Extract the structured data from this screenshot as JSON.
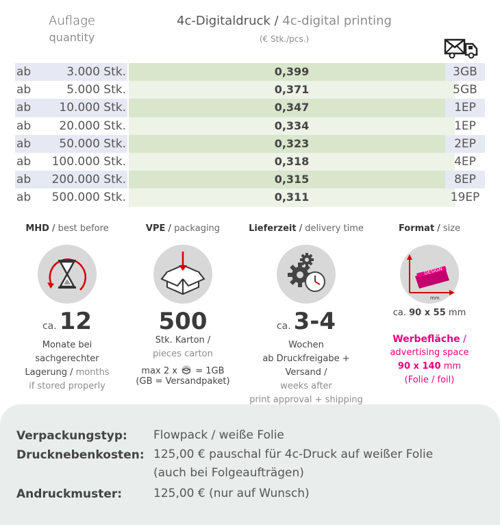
{
  "header": {
    "qty_de": "Auflage",
    "qty_en": "quantity",
    "title_de": "4c-Digitaldruck",
    "title_sep": " / ",
    "title_en": "4c-digital printing",
    "unit": "(€ Stk./pcs.)",
    "truck_icon": "truck-mail-icon"
  },
  "prices": [
    {
      "ab": "ab",
      "qty": "3.000 Stk.",
      "price": "0,399",
      "ship": "3GB"
    },
    {
      "ab": "ab",
      "qty": "5.000 Stk.",
      "price": "0,371",
      "ship": "5GB"
    },
    {
      "ab": "ab",
      "qty": "10.000 Stk.",
      "price": "0,347",
      "ship": "1EP"
    },
    {
      "ab": "ab",
      "qty": "20.000 Stk.",
      "price": "0,334",
      "ship": "1EP"
    },
    {
      "ab": "ab",
      "qty": "50.000 Stk.",
      "price": "0,323",
      "ship": "2EP"
    },
    {
      "ab": "ab",
      "qty": "100.000 Stk.",
      "price": "0,318",
      "ship": "4EP"
    },
    {
      "ab": "ab",
      "qty": "200.000 Stk.",
      "price": "0,315",
      "ship": "8EP"
    },
    {
      "ab": "ab",
      "qty": "500.000 Stk.",
      "price": "0,311",
      "ship": "19EP"
    }
  ],
  "mhd": {
    "title_de": "MHD",
    "title_en": "best before",
    "ca": "ca.",
    "value": "12",
    "line1": "Monate bei",
    "line2": "sachgerechter",
    "line3_de": "Lagerung",
    "line3_en": "months",
    "line4": "if stored properly"
  },
  "vpe": {
    "title_de": "VPE",
    "title_en": "packaging",
    "value": "500",
    "line1": "Stk. Karton /",
    "line2": "pieces carton",
    "note1a": "max 2 x",
    "note1b": "= 1GB",
    "note2": "(GB = Versandpaket)"
  },
  "delivery": {
    "title_de": "Lieferzeit",
    "title_en": "delivery time",
    "ca": "ca.",
    "value": "3-4",
    "line1": "Wochen",
    "line2": "ab Druckfreigabe + Versand /",
    "line3": "weeks after",
    "line4": "print approval + shipping"
  },
  "format": {
    "title_de": "Format",
    "title_en": "size",
    "icon_label": "DESIGN",
    "icon_unit": "mm",
    "size_prefix": "ca.",
    "size_value": "90 x 55",
    "size_unit": "mm",
    "ad_de": "Werbefläche",
    "ad_sep": "/",
    "ad_en": "advertising space",
    "ad_value": "90 x 140",
    "ad_unit": "mm",
    "ad_foil": "(Folie / foil)"
  },
  "bottom": {
    "pack_label": "Verpackungstyp:",
    "pack_value": "Flowpack / weiße Folie",
    "cost_label": "Drucknebenkosten:",
    "cost_value1": "125,00 € pauschal für 4c-Druck auf weißer Folie",
    "cost_value2": "(auch bei Folgeaufträgen)",
    "proof_label": "Andruckmuster:",
    "proof_value": "125,00 € (nur auf Wunsch)"
  },
  "colors": {
    "accent": "#e6007e",
    "row_blue": "#e6e9f3",
    "row_green_dark": "#d9e6cc",
    "row_green_light": "#edf3e6",
    "bottom_bg": "#e9eeec"
  }
}
